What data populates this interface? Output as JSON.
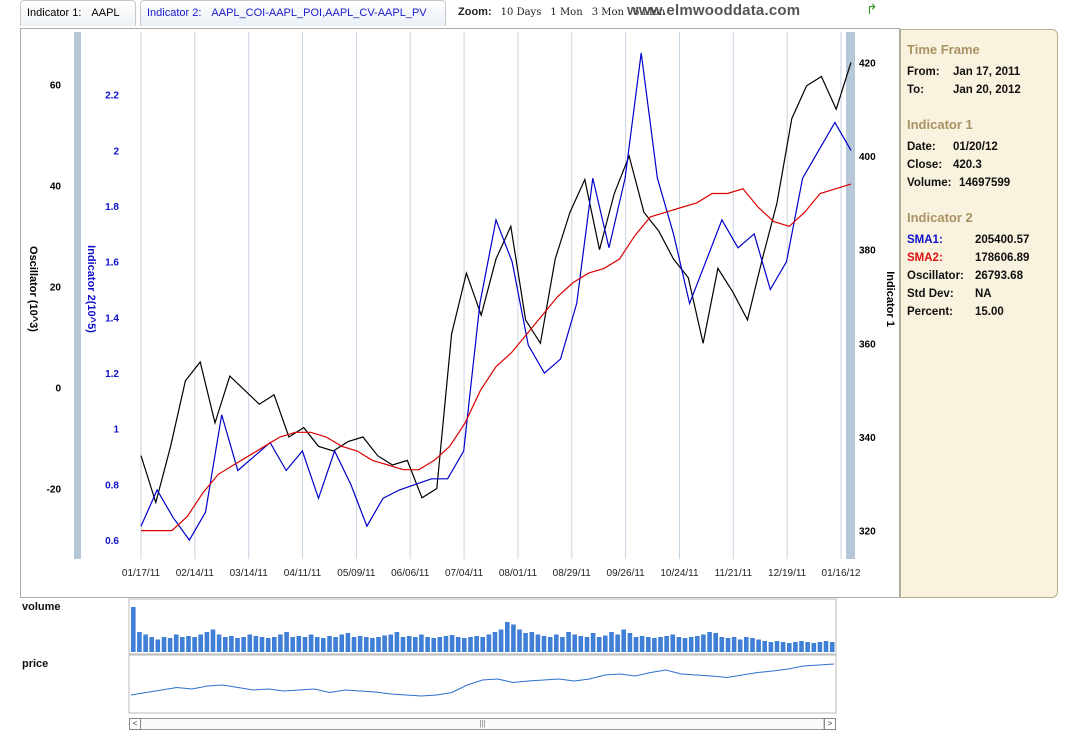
{
  "tabs": {
    "indicator1": {
      "label": "Indicator 1:",
      "value": "AAPL"
    },
    "indicator2": {
      "label": "Indicator 2:",
      "value": "AAPL_COI-AAPL_POI,AAPL_CV-AAPL_PV"
    }
  },
  "zoom": {
    "label": "Zoom:",
    "options": [
      "10 Days",
      "1 Mon",
      "3 Mon",
      "6 Mon"
    ]
  },
  "brand": "www.elmwooddata.com",
  "chart_data": {
    "type": "line",
    "x_tick_labels": [
      "01/17/11",
      "02/14/11",
      "03/14/11",
      "04/11/11",
      "05/09/11",
      "06/06/11",
      "07/04/11",
      "08/01/11",
      "08/29/11",
      "09/26/11",
      "10/24/11",
      "11/21/11",
      "12/19/11",
      "01/16/12"
    ],
    "axes": {
      "oscillator": {
        "label": "Oscillator (10^3)",
        "ticks": [
          "60",
          "40",
          "20",
          "0",
          "-20"
        ],
        "range": [
          -33,
          69
        ]
      },
      "indicator2": {
        "label": "Indicator 2(10^5)",
        "ticks": [
          "2.2",
          "2",
          "1.8",
          "1.6",
          "1.4",
          "1.2",
          "1",
          "0.8",
          "0.6"
        ],
        "range": [
          0.55,
          2.4
        ]
      },
      "indicator1": {
        "label": "Indicator 1",
        "ticks": [
          "420",
          "400",
          "380",
          "360",
          "340",
          "320"
        ],
        "range": [
          315,
          425
        ]
      }
    },
    "series": [
      {
        "color": "#000000",
        "axis": "indicator1",
        "values": [
          336,
          326,
          338,
          352,
          356,
          343,
          353,
          350,
          347,
          349,
          340,
          342,
          338,
          337,
          339,
          340,
          336,
          334,
          335,
          327,
          329,
          362,
          375,
          366,
          378,
          385,
          365,
          360,
          378,
          388,
          395,
          380,
          392,
          400,
          388,
          384,
          378,
          374,
          360,
          376,
          371,
          365,
          378,
          390,
          408,
          415,
          417,
          410,
          420
        ]
      },
      {
        "color": "#0000cc",
        "axis": "indicator2",
        "values": [
          0.65,
          0.78,
          0.68,
          0.6,
          0.7,
          1.05,
          0.85,
          0.9,
          0.95,
          0.85,
          0.92,
          0.75,
          0.92,
          0.8,
          0.65,
          0.75,
          0.78,
          0.8,
          0.82,
          0.82,
          0.92,
          1.45,
          1.75,
          1.6,
          1.3,
          1.2,
          1.25,
          1.45,
          1.9,
          1.65,
          1.9,
          2.35,
          1.9,
          1.7,
          1.45,
          1.6,
          1.75,
          1.65,
          1.7,
          1.5,
          1.6,
          1.9,
          2,
          2.1,
          2.0
        ]
      },
      {
        "color": "#dd0000",
        "axis": "indicator1",
        "values": [
          320,
          320,
          320,
          323,
          328,
          332,
          334,
          336,
          338,
          340,
          341,
          341,
          340,
          338,
          337,
          335,
          334,
          333,
          333,
          335,
          338,
          343,
          350,
          355,
          358,
          362,
          366,
          370,
          373,
          375,
          376,
          378,
          383,
          387,
          388,
          389,
          390,
          392,
          392,
          393,
          389,
          386,
          385,
          388,
          392,
          393,
          394
        ]
      }
    ]
  },
  "panel": {
    "time_frame": {
      "title": "Time Frame",
      "from_label": "From:",
      "from": "Jan 17, 2011",
      "to_label": "To:",
      "to": "Jan 20, 2012"
    },
    "indicator1": {
      "title": "Indicator 1",
      "date_label": "Date:",
      "date": "01/20/12",
      "close_label": "Close:",
      "close": "420.3",
      "volume_label": "Volume:",
      "volume": "14697599"
    },
    "indicator2": {
      "title": "Indicator 2",
      "sma1_label": "SMA1:",
      "sma1": "205400.57",
      "sma2_label": "SMA2:",
      "sma2": "178606.89",
      "osc_label": "Oscillator:",
      "osc": "26793.68",
      "std_label": "Std Dev:",
      "std": "NA",
      "pct_label": "Percent:",
      "pct": "15.00"
    }
  },
  "mini": {
    "volume_label": "volume",
    "price_label": "price",
    "volume_values": [
      0.9,
      0.4,
      0.35,
      0.3,
      0.25,
      0.3,
      0.28,
      0.35,
      0.3,
      0.32,
      0.3,
      0.35,
      0.4,
      0.45,
      0.35,
      0.3,
      0.32,
      0.28,
      0.3,
      0.35,
      0.32,
      0.3,
      0.28,
      0.3,
      0.35,
      0.4,
      0.3,
      0.32,
      0.3,
      0.35,
      0.3,
      0.28,
      0.32,
      0.3,
      0.35,
      0.38,
      0.3,
      0.32,
      0.3,
      0.28,
      0.3,
      0.33,
      0.35,
      0.4,
      0.3,
      0.32,
      0.3,
      0.35,
      0.3,
      0.28,
      0.3,
      0.32,
      0.34,
      0.3,
      0.28,
      0.3,
      0.32,
      0.3,
      0.35,
      0.4,
      0.45,
      0.6,
      0.55,
      0.45,
      0.38,
      0.4,
      0.35,
      0.32,
      0.3,
      0.35,
      0.3,
      0.4,
      0.35,
      0.32,
      0.3,
      0.38,
      0.3,
      0.33,
      0.4,
      0.35,
      0.45,
      0.38,
      0.3,
      0.32,
      0.3,
      0.28,
      0.3,
      0.32,
      0.35,
      0.3,
      0.28,
      0.3,
      0.32,
      0.35,
      0.4,
      0.38,
      0.3,
      0.28,
      0.3,
      0.25,
      0.3,
      0.28,
      0.25,
      0.22,
      0.2,
      0.22,
      0.2,
      0.18,
      0.2,
      0.22,
      0.2,
      0.18,
      0.2,
      0.22,
      0.2
    ],
    "price_values": [
      0.3,
      0.35,
      0.4,
      0.45,
      0.42,
      0.48,
      0.5,
      0.45,
      0.4,
      0.42,
      0.38,
      0.4,
      0.42,
      0.35,
      0.4,
      0.38,
      0.36,
      0.32,
      0.3,
      0.28,
      0.3,
      0.35,
      0.5,
      0.6,
      0.62,
      0.55,
      0.58,
      0.6,
      0.62,
      0.58,
      0.62,
      0.7,
      0.72,
      0.68,
      0.75,
      0.8,
      0.72,
      0.7,
      0.68,
      0.65,
      0.7,
      0.75,
      0.78,
      0.82,
      0.88,
      0.9,
      0.92
    ]
  }
}
